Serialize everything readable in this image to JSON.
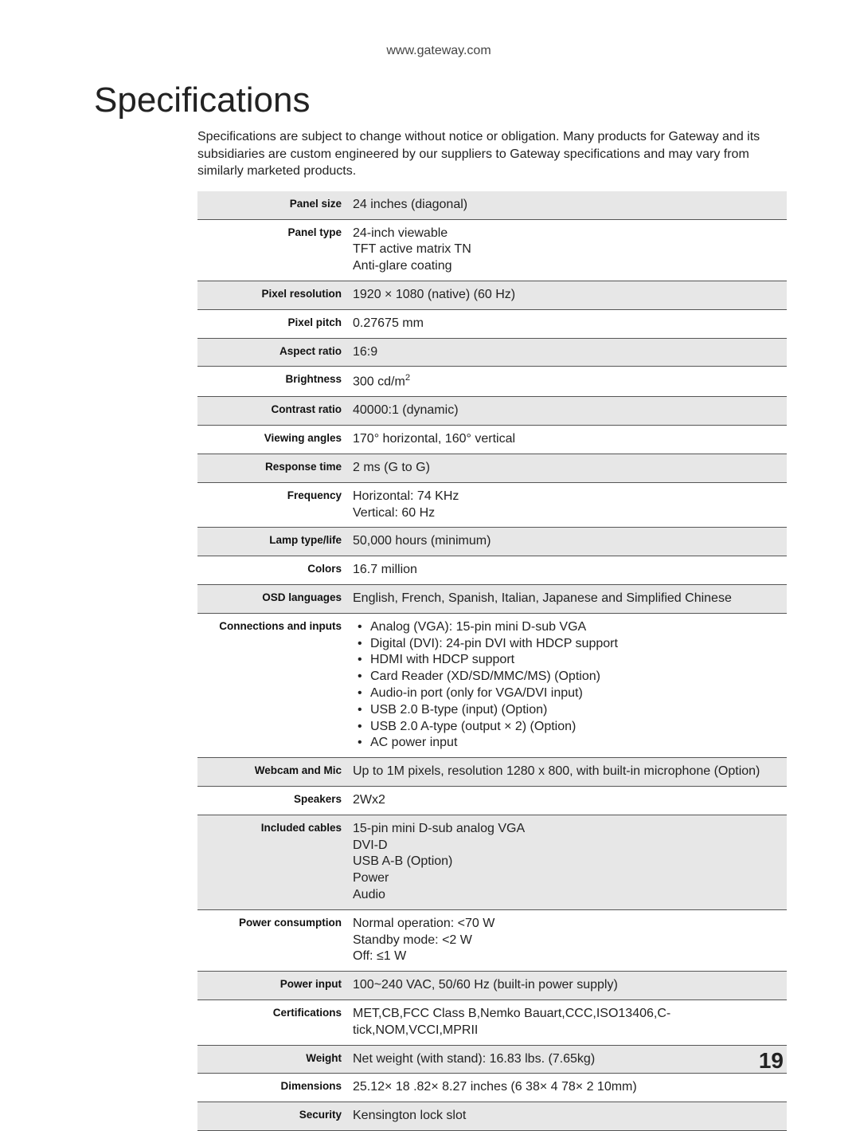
{
  "header_url": "www.gateway.com",
  "title": "Specifications",
  "intro": "Specifications are subject to change without notice or obligation. Many products for Gateway and its subsidiaries are custom engineered by our suppliers to Gateway specifications and may vary from similarly marketed products.",
  "page_number": "19",
  "styling": {
    "row_alt_bg": "#e7e7e7",
    "row_border": "#555555",
    "title_fontsize": 44,
    "label_fontsize": 13.5,
    "value_fontsize": 16,
    "page_bg": "#ffffff"
  },
  "rows": [
    {
      "label": "Panel size",
      "lines": [
        "24 inches (diagonal)"
      ],
      "bulleted": false
    },
    {
      "label": "Panel type",
      "lines": [
        "24-inch viewable",
        "TFT active matrix TN",
        "Anti-glare coating"
      ],
      "bulleted": false
    },
    {
      "label": "Pixel resolution",
      "lines": [
        "1920 × 1080 (native) (60 Hz)"
      ],
      "bulleted": false
    },
    {
      "label": "Pixel pitch",
      "lines": [
        "0.27675 mm"
      ],
      "bulleted": false
    },
    {
      "label": "Aspect ratio",
      "lines": [
        "16:9"
      ],
      "bulleted": false
    },
    {
      "label": "Brightness",
      "lines": [
        "300 cd/m²"
      ],
      "bulleted": false,
      "html": "300 cd/m<sup>2</sup>"
    },
    {
      "label": "Contrast ratio",
      "lines": [
        "40000:1 (dynamic)"
      ],
      "bulleted": false
    },
    {
      "label": "Viewing angles",
      "lines": [
        "170° horizontal, 160° vertical"
      ],
      "bulleted": false
    },
    {
      "label": "Response time",
      "lines": [
        "2 ms (G to G)"
      ],
      "bulleted": false
    },
    {
      "label": "Frequency",
      "lines": [
        "Horizontal: 74 KHz",
        "Vertical: 60 Hz"
      ],
      "bulleted": false
    },
    {
      "label": "Lamp type/life",
      "lines": [
        "50,000 hours (minimum)"
      ],
      "bulleted": false
    },
    {
      "label": "Colors",
      "lines": [
        "16.7 million"
      ],
      "bulleted": false
    },
    {
      "label": "OSD languages",
      "lines": [
        "English, French, Spanish, Italian, Japanese and Simplified Chinese"
      ],
      "bulleted": false
    },
    {
      "label": "Connections and inputs",
      "lines": [
        "Analog (VGA): 15-pin mini D-sub VGA",
        "Digital (DVI): 24-pin DVI with HDCP support",
        "HDMI with HDCP support",
        "Card Reader (XD/SD/MMC/MS) (Option)",
        "Audio-in port (only for VGA/DVI input)",
        "USB 2.0 B-type (input) (Option)",
        "USB 2.0 A-type (output × 2) (Option)",
        "AC power input"
      ],
      "bulleted": true
    },
    {
      "label": "Webcam and Mic",
      "lines": [
        "Up to 1M pixels, resolution 1280 x 800, with built-in microphone (Option)"
      ],
      "bulleted": false
    },
    {
      "label": "Speakers",
      "lines": [
        "2Wx2"
      ],
      "bulleted": false
    },
    {
      "label": "Included cables",
      "lines": [
        "15-pin mini D-sub analog VGA",
        "DVI-D",
        "USB A-B (Option)",
        "Power",
        "Audio"
      ],
      "bulleted": false
    },
    {
      "label": "Power consumption",
      "lines": [
        "Normal operation: <70 W",
        "Standby mode: <2 W",
        "Off: ≤1 W"
      ],
      "bulleted": false
    },
    {
      "label": "Power input",
      "lines": [
        "100~240 VAC, 50/60 Hz (built-in power supply)"
      ],
      "bulleted": false
    },
    {
      "label": "Certifications",
      "lines": [
        "MET,CB,FCC Class B,Nemko Bauart,CCC,ISO13406,C-tick,NOM,VCCI,MPRII"
      ],
      "bulleted": false
    },
    {
      "label": "Weight",
      "lines": [
        "Net weight (with stand): 16.83 lbs. (7.65kg)"
      ],
      "bulleted": false
    },
    {
      "label": "Dimensions",
      "lines": [
        "25.12× 18 .82× 8.27 inches (6 38× 4 78× 2 10mm)"
      ],
      "bulleted": false
    },
    {
      "label": "Security",
      "lines": [
        "Kensington lock slot"
      ],
      "bulleted": false
    }
  ]
}
